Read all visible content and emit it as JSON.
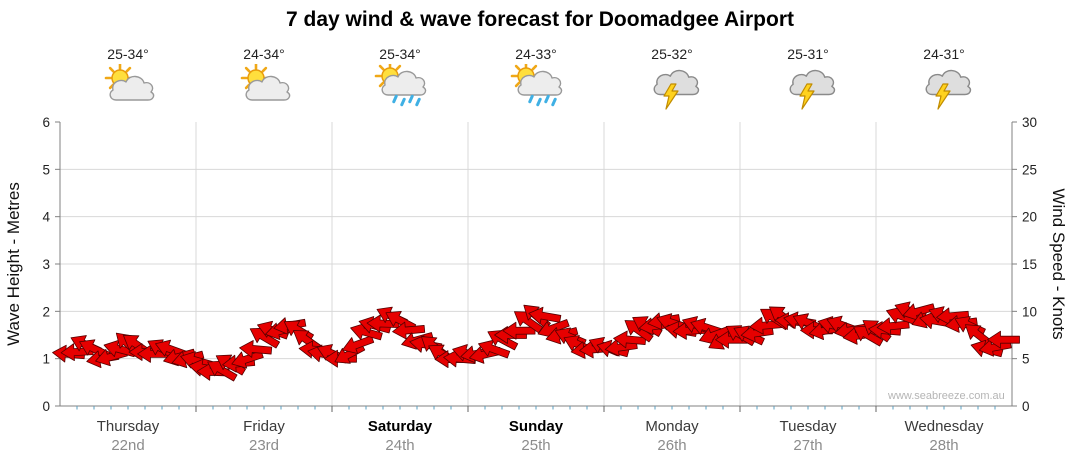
{
  "title": "7 day wind & wave forecast for Doomadgee Airport",
  "watermark": "www.seabreeze.com.au",
  "days": [
    {
      "name": "Thursday",
      "date": "22nd",
      "temp": "25-34°",
      "icon": "partly-cloudy",
      "weekend": false
    },
    {
      "name": "Friday",
      "date": "23rd",
      "temp": "24-34°",
      "icon": "partly-cloudy",
      "weekend": false
    },
    {
      "name": "Saturday",
      "date": "24th",
      "temp": "25-34°",
      "icon": "sun-showers",
      "weekend": true
    },
    {
      "name": "Sunday",
      "date": "25th",
      "temp": "24-33°",
      "icon": "sun-showers",
      "weekend": true
    },
    {
      "name": "Monday",
      "date": "26th",
      "temp": "25-32°",
      "icon": "storm",
      "weekend": false
    },
    {
      "name": "Tuesday",
      "date": "27th",
      "temp": "25-31°",
      "icon": "storm",
      "weekend": false
    },
    {
      "name": "Wednesday",
      "date": "28th",
      "temp": "24-31°",
      "icon": "storm",
      "weekend": false
    }
  ],
  "colors": {
    "arrow_fill": "#e60000",
    "arrow_stroke": "#550000",
    "grid": "#d8d8d8",
    "axis": "#808080",
    "tick_text": "#222222",
    "minor_tick": "#5a9fc0",
    "day_tick": "#666666"
  },
  "chart_data": {
    "type": "scatter",
    "marker": "wind-arrow",
    "title": "7 day wind & wave forecast for Doomadgee Airport",
    "x_unit": "hours",
    "x_start_hour": 1.5,
    "x_step_hours": 3,
    "x_range_hours": [
      0,
      168
    ],
    "left_axis": {
      "label": "Wave Height - Metres",
      "min": 0,
      "max": 6,
      "ticks": [
        0,
        1,
        2,
        3,
        4,
        5,
        6
      ]
    },
    "right_axis": {
      "label": "Wind Speed - Knots",
      "min": 0,
      "max": 30,
      "ticks": [
        0,
        5,
        10,
        15,
        20,
        25,
        30
      ]
    },
    "grid": true,
    "day_categories": [
      "Thursday 22nd",
      "Friday 23rd",
      "Saturday 24th",
      "Sunday 25th",
      "Monday 26th",
      "Tuesday 27th",
      "Wednesday 28th"
    ],
    "wind_speed_knots": [
      5.5,
      6.5,
      5.0,
      6.0,
      6.5,
      5.5,
      6.0,
      5.0,
      4.0,
      3.8,
      4.5,
      6.0,
      8.0,
      8.5,
      7.0,
      5.5,
      5.0,
      6.5,
      8.5,
      9.5,
      8.0,
      6.5,
      5.5,
      5.0,
      5.5,
      6.0,
      7.5,
      9.0,
      9.5,
      7.5,
      6.5,
      6.0,
      6.0,
      7.0,
      8.5,
      9.0,
      8.0,
      8.5,
      7.5,
      7.0,
      7.5,
      8.5,
      9.5,
      9.0,
      8.0,
      8.5,
      8.0,
      7.5,
      8.0,
      9.5,
      10.0,
      9.0,
      9.5,
      8.5,
      6.0,
      7.0
    ],
    "wind_dir_deg": [
      185,
      205,
      170,
      195,
      215,
      180,
      200,
      165,
      190,
      210,
      175,
      185,
      200,
      170,
      215,
      190,
      180,
      160,
      195,
      205,
      175,
      190,
      210,
      185,
      170,
      200,
      180,
      215,
      190,
      165,
      205,
      175,
      195,
      185,
      210,
      170,
      190,
      200,
      160,
      180,
      205,
      175,
      215,
      190,
      180,
      195,
      170,
      210,
      185,
      200,
      165,
      190,
      175,
      205,
      195,
      180
    ]
  }
}
